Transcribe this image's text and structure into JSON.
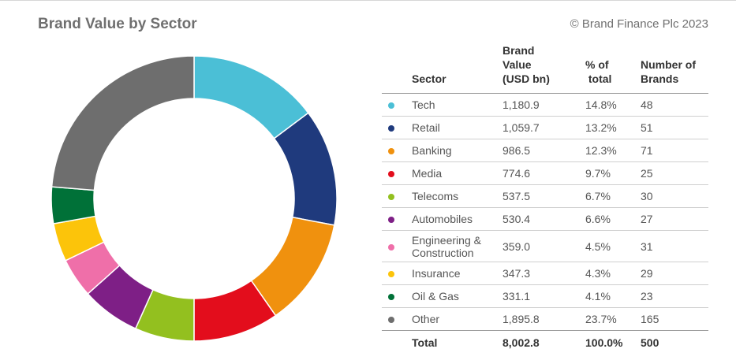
{
  "header": {
    "title": "Brand Value by Sector",
    "copyright": "© Brand Finance Plc 2023"
  },
  "table": {
    "headers": {
      "sector": "Sector",
      "value_line1": "Brand",
      "value_line2": "Value",
      "value_line3": "(USD bn)",
      "pct_line1": "% of",
      "pct_line2": "total",
      "num_line1": "Number of",
      "num_line2": "Brands"
    },
    "rows": [
      {
        "sector": "Tech",
        "value": "1,180.9",
        "pct": "14.8%",
        "brands": "48"
      },
      {
        "sector": "Retail",
        "value": "1,059.7",
        "pct": "13.2%",
        "brands": "51"
      },
      {
        "sector": "Banking",
        "value": "986.5",
        "pct": "12.3%",
        "brands": "71"
      },
      {
        "sector": "Media",
        "value": "774.6",
        "pct": "9.7%",
        "brands": "25"
      },
      {
        "sector": "Telecoms",
        "value": "537.5",
        "pct": "6.7%",
        "brands": "30"
      },
      {
        "sector": "Automobiles",
        "value": "530.4",
        "pct": "6.6%",
        "brands": "27"
      },
      {
        "sector": "Engineering & Construction",
        "sector_line1": "Engineering &",
        "sector_line2": "Construction",
        "value": "359.0",
        "pct": "4.5%",
        "brands": "31"
      },
      {
        "sector": "Insurance",
        "value": "347.3",
        "pct": "4.3%",
        "brands": "29"
      },
      {
        "sector": "Oil & Gas",
        "value": "331.1",
        "pct": "4.1%",
        "brands": "23"
      },
      {
        "sector": "Other",
        "value": "1,895.8",
        "pct": "23.7%",
        "brands": "165"
      }
    ],
    "total": {
      "label": "Total",
      "value": "8,002.8",
      "pct": "100.0%",
      "brands": "500"
    }
  },
  "chart_data": {
    "type": "pie",
    "subtype": "donut",
    "title": "Brand Value by Sector",
    "unit": "USD bn",
    "categories": [
      "Tech",
      "Retail",
      "Banking",
      "Media",
      "Telecoms",
      "Automobiles",
      "Engineering & Construction",
      "Insurance",
      "Oil & Gas",
      "Other"
    ],
    "values": [
      1180.9,
      1059.7,
      986.5,
      774.6,
      537.5,
      530.4,
      359.0,
      347.3,
      331.1,
      1895.8
    ],
    "colors": [
      "#4bbfd6",
      "#1f3a7d",
      "#f0910e",
      "#e30d1c",
      "#93c01f",
      "#7e1f86",
      "#ef6fa9",
      "#fcc40a",
      "#007138",
      "#6e6e6e"
    ],
    "start": "12 o'clock",
    "direction": "clockwise"
  }
}
